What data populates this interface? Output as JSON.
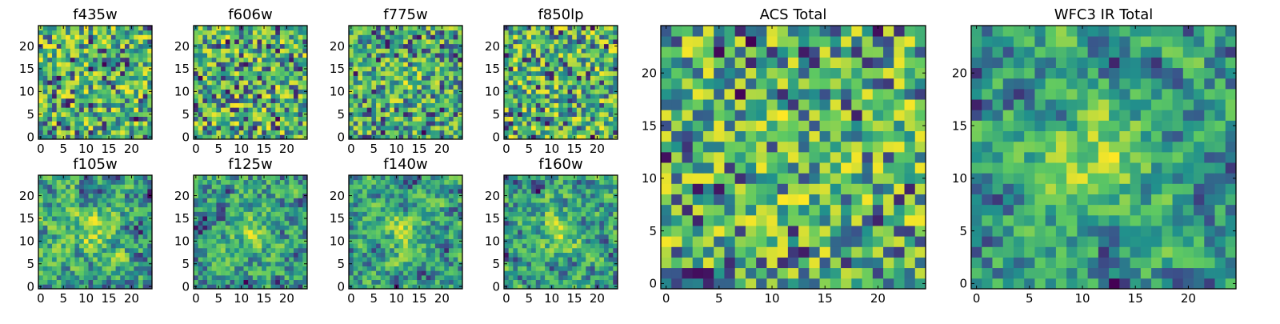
{
  "figure": {
    "type": "heatmap",
    "colormap": "viridis",
    "grid": false,
    "colors": [
      "#440154",
      "#3b528b",
      "#21918c",
      "#5ec962",
      "#fde725"
    ]
  },
  "chart_data": [
    {
      "type": "heatmap",
      "title": "f435w",
      "xlim": [
        -0.5,
        24.5
      ],
      "ylim": [
        -0.5,
        24.5
      ],
      "xticks": [
        "0",
        "5",
        "10",
        "15",
        "20"
      ],
      "yticks": [
        "0",
        "5",
        "10",
        "15",
        "20"
      ],
      "grid": false,
      "note": "25x25 pixel noise map, viridis colormap"
    },
    {
      "type": "heatmap",
      "title": "f606w",
      "xlim": [
        -0.5,
        24.5
      ],
      "ylim": [
        -0.5,
        24.5
      ],
      "xticks": [
        "0",
        "5",
        "10",
        "15",
        "20"
      ],
      "yticks": [
        "0",
        "5",
        "10",
        "15",
        "20"
      ],
      "grid": false
    },
    {
      "type": "heatmap",
      "title": "f775w",
      "xlim": [
        -0.5,
        24.5
      ],
      "ylim": [
        -0.5,
        24.5
      ],
      "xticks": [
        "0",
        "5",
        "10",
        "15",
        "20"
      ],
      "yticks": [
        "0",
        "5",
        "10",
        "15",
        "20"
      ],
      "grid": false
    },
    {
      "type": "heatmap",
      "title": "f850lp",
      "xlim": [
        -0.5,
        24.5
      ],
      "ylim": [
        -0.5,
        24.5
      ],
      "xticks": [
        "0",
        "5",
        "10",
        "15",
        "20"
      ],
      "yticks": [
        "0",
        "5",
        "10",
        "15",
        "20"
      ],
      "grid": false
    },
    {
      "type": "heatmap",
      "title": "f105w",
      "xlim": [
        -0.5,
        24.5
      ],
      "ylim": [
        -0.5,
        24.5
      ],
      "xticks": [
        "0",
        "5",
        "10",
        "15",
        "20"
      ],
      "yticks": [
        "0",
        "5",
        "10",
        "15",
        "20"
      ],
      "grid": false
    },
    {
      "type": "heatmap",
      "title": "f125w",
      "xlim": [
        -0.5,
        24.5
      ],
      "ylim": [
        -0.5,
        24.5
      ],
      "xticks": [
        "0",
        "5",
        "10",
        "15",
        "20"
      ],
      "yticks": [
        "0",
        "5",
        "10",
        "15",
        "20"
      ],
      "grid": false
    },
    {
      "type": "heatmap",
      "title": "f140w",
      "xlim": [
        -0.5,
        24.5
      ],
      "ylim": [
        -0.5,
        24.5
      ],
      "xticks": [
        "0",
        "5",
        "10",
        "15",
        "20"
      ],
      "yticks": [
        "0",
        "5",
        "10",
        "15",
        "20"
      ],
      "grid": false
    },
    {
      "type": "heatmap",
      "title": "f160w",
      "xlim": [
        -0.5,
        24.5
      ],
      "ylim": [
        -0.5,
        24.5
      ],
      "xticks": [
        "0",
        "5",
        "10",
        "15",
        "20"
      ],
      "yticks": [
        "0",
        "5",
        "10",
        "15",
        "20"
      ],
      "grid": false
    },
    {
      "type": "heatmap",
      "title": "ACS Total",
      "xlim": [
        -0.5,
        24.5
      ],
      "ylim": [
        -0.5,
        24.5
      ],
      "xticks": [
        "0",
        "5",
        "10",
        "15",
        "20"
      ],
      "yticks": [
        "0",
        "5",
        "10",
        "15",
        "20"
      ],
      "grid": false
    },
    {
      "type": "heatmap",
      "title": "WFC3 IR Total",
      "xlim": [
        -0.5,
        24.5
      ],
      "ylim": [
        -0.5,
        24.5
      ],
      "xticks": [
        "0",
        "5",
        "10",
        "15",
        "20"
      ],
      "yticks": [
        "0",
        "5",
        "10",
        "15",
        "20"
      ],
      "grid": false
    }
  ]
}
